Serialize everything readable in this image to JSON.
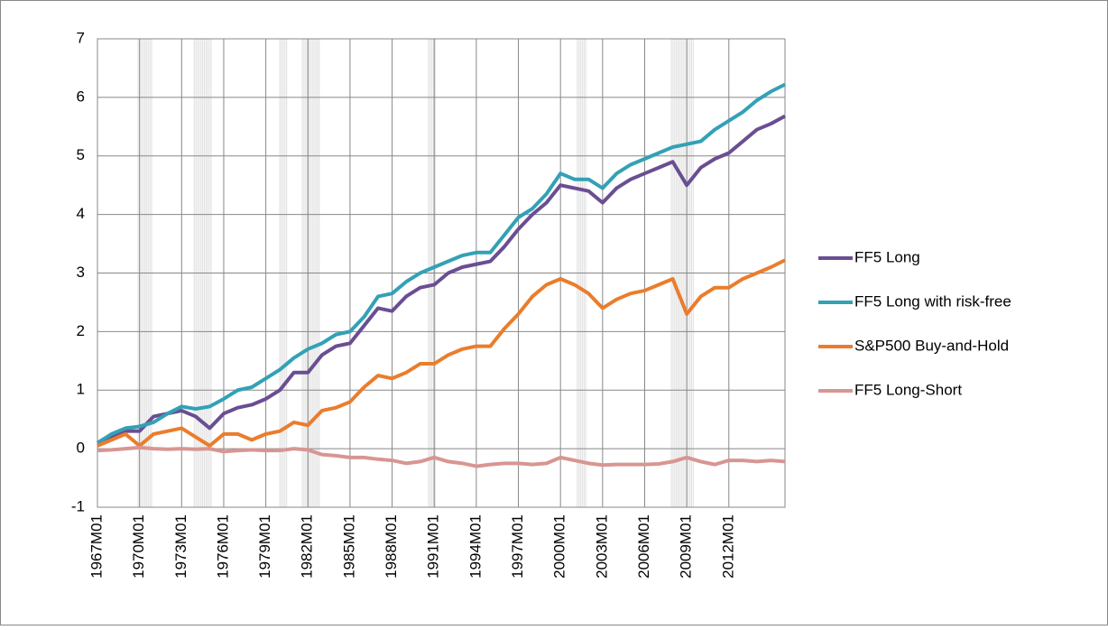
{
  "chart_data": {
    "type": "line",
    "categories": [
      "1967M01",
      null,
      null,
      "1970M01",
      null,
      null,
      "1973M01",
      null,
      null,
      "1976M01",
      null,
      null,
      "1979M01",
      null,
      null,
      "1982M01",
      null,
      null,
      "1985M01",
      null,
      null,
      "1988M01",
      null,
      null,
      "1991M01",
      null,
      null,
      "1994M01",
      null,
      null,
      "1997M01",
      null,
      null,
      "2000M01",
      null,
      null,
      "2003M01",
      null,
      null,
      "2006M01",
      null,
      null,
      "2009M01",
      null,
      null,
      "2012M01",
      null,
      null,
      null,
      null
    ],
    "series": [
      {
        "name": "FF5 Long",
        "color": "#6a4e92",
        "values": [
          0.1,
          0.2,
          0.3,
          0.3,
          0.55,
          0.6,
          0.65,
          0.55,
          0.35,
          0.6,
          0.7,
          0.75,
          0.85,
          1.0,
          1.3,
          1.3,
          1.6,
          1.75,
          1.8,
          2.1,
          2.4,
          2.35,
          2.6,
          2.75,
          2.8,
          3.0,
          3.1,
          3.15,
          3.2,
          3.45,
          3.75,
          4.0,
          4.2,
          4.5,
          4.45,
          4.4,
          4.2,
          4.45,
          4.6,
          4.7,
          4.8,
          4.9,
          4.5,
          4.8,
          4.95,
          5.05,
          5.25,
          5.45,
          5.55,
          5.68
        ]
      },
      {
        "name": "FF5 Long with risk-free",
        "color": "#33a1b6",
        "values": [
          0.1,
          0.25,
          0.35,
          0.38,
          0.45,
          0.6,
          0.72,
          0.68,
          0.72,
          0.85,
          1.0,
          1.05,
          1.2,
          1.35,
          1.55,
          1.7,
          1.8,
          1.95,
          2.0,
          2.25,
          2.6,
          2.65,
          2.85,
          3.0,
          3.1,
          3.2,
          3.3,
          3.35,
          3.35,
          3.65,
          3.95,
          4.1,
          4.35,
          4.7,
          4.6,
          4.6,
          4.45,
          4.7,
          4.85,
          4.95,
          5.05,
          5.15,
          5.2,
          5.25,
          5.45,
          5.6,
          5.75,
          5.95,
          6.1,
          6.22
        ]
      },
      {
        "name": "S&P500 Buy-and-Hold",
        "color": "#ea7d2c",
        "values": [
          0.05,
          0.15,
          0.25,
          0.05,
          0.25,
          0.3,
          0.35,
          0.2,
          0.05,
          0.25,
          0.25,
          0.15,
          0.25,
          0.3,
          0.45,
          0.4,
          0.65,
          0.7,
          0.8,
          1.05,
          1.25,
          1.2,
          1.3,
          1.45,
          1.45,
          1.6,
          1.7,
          1.75,
          1.75,
          2.05,
          2.3,
          2.6,
          2.8,
          2.9,
          2.8,
          2.65,
          2.4,
          2.55,
          2.65,
          2.7,
          2.8,
          2.9,
          2.3,
          2.6,
          2.75,
          2.75,
          2.9,
          3.0,
          3.1,
          3.22
        ]
      },
      {
        "name": "FF5 Long-Short",
        "color": "#d79692",
        "values": [
          -0.03,
          -0.02,
          0,
          0.02,
          0,
          -0.01,
          0,
          -0.01,
          0,
          -0.05,
          -0.03,
          -0.02,
          -0.03,
          -0.03,
          0,
          -0.02,
          -0.1,
          -0.12,
          -0.15,
          -0.15,
          -0.18,
          -0.2,
          -0.25,
          -0.22,
          -0.15,
          -0.22,
          -0.25,
          -0.3,
          -0.27,
          -0.25,
          -0.25,
          -0.27,
          -0.25,
          -0.15,
          -0.2,
          -0.25,
          -0.28,
          -0.27,
          -0.27,
          -0.27,
          -0.26,
          -0.22,
          -0.15,
          -0.22,
          -0.27,
          -0.2,
          -0.2,
          -0.22,
          -0.2,
          -0.22
        ]
      }
    ],
    "ylim": [
      -1,
      7
    ],
    "yticks": [
      -1,
      0,
      1,
      2,
      3,
      4,
      5,
      6,
      7
    ],
    "grid": true,
    "legend": "right"
  }
}
